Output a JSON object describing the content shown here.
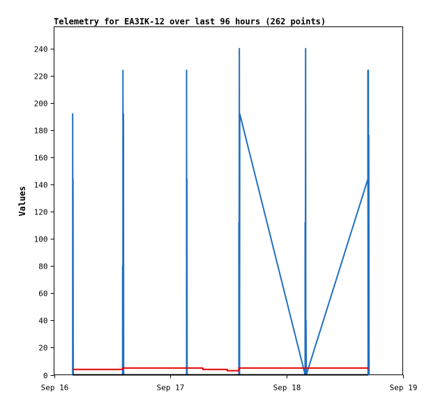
{
  "chart_data": {
    "type": "line",
    "title": "Telemetry for EA3IK-12 over last 96 hours (262 points)",
    "xlabel": "",
    "ylabel": "Values",
    "ylim": [
      0,
      256
    ],
    "xlim": [
      "Sep 16",
      "Sep 19"
    ],
    "yticks": [
      0,
      20,
      40,
      60,
      80,
      100,
      120,
      140,
      160,
      180,
      200,
      220,
      240
    ],
    "xticks": [
      {
        "label": "Sep 16",
        "day": 0
      },
      {
        "label": "Sep 17",
        "day": 1
      },
      {
        "label": "Sep 18",
        "day": 2
      },
      {
        "label": "Sep 19",
        "day": 3
      }
    ],
    "grid": false,
    "legend": "none",
    "series": [
      {
        "color": "#1f6fc4",
        "comment_x_units": "days after Sep 16 00:00",
        "points": [
          [
            0.16,
            0
          ],
          [
            0.16,
            192
          ],
          [
            0.162,
            0
          ],
          [
            0.163,
            144
          ],
          [
            0.165,
            0
          ],
          [
            0.59,
            0
          ],
          [
            0.59,
            80
          ],
          [
            0.592,
            0
          ],
          [
            0.593,
            224
          ],
          [
            0.595,
            0
          ],
          [
            0.597,
            192
          ],
          [
            0.599,
            0
          ],
          [
            1.14,
            0
          ],
          [
            1.14,
            224
          ],
          [
            1.142,
            0
          ],
          [
            1.143,
            144
          ],
          [
            1.145,
            0
          ],
          [
            1.59,
            0
          ],
          [
            1.59,
            112
          ],
          [
            1.592,
            0
          ],
          [
            1.594,
            240
          ],
          [
            1.596,
            0
          ],
          [
            1.598,
            192
          ],
          [
            2.16,
            0
          ],
          [
            2.16,
            112
          ],
          [
            2.162,
            0
          ],
          [
            2.164,
            240
          ],
          [
            2.166,
            0
          ],
          [
            2.168,
            40
          ],
          [
            2.17,
            0
          ],
          [
            2.7,
            144
          ],
          [
            2.7,
            224
          ],
          [
            2.702,
            0
          ],
          [
            2.704,
            224
          ],
          [
            2.706,
            0
          ],
          [
            2.708,
            176
          ],
          [
            2.71,
            0
          ]
        ]
      },
      {
        "color": "#e00000",
        "points": [
          [
            0.16,
            4
          ],
          [
            0.59,
            4
          ],
          [
            0.59,
            5
          ],
          [
            1.14,
            5
          ],
          [
            1.28,
            5
          ],
          [
            1.28,
            4
          ],
          [
            1.49,
            4
          ],
          [
            1.49,
            3
          ],
          [
            1.59,
            3
          ],
          [
            1.59,
            5
          ],
          [
            2.7,
            5
          ],
          [
            2.7,
            4
          ]
        ]
      },
      {
        "color": "#000000",
        "points": [
          [
            0.16,
            0
          ],
          [
            2.7,
            0
          ]
        ]
      }
    ]
  }
}
